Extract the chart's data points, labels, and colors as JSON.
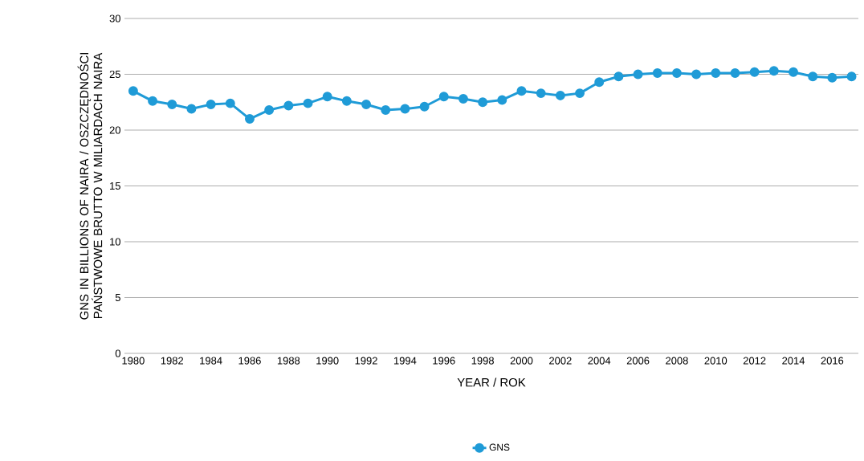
{
  "chart_data": {
    "type": "line",
    "xlabel": "YEAR / ROK",
    "ylabel": "GNS IN BILLIONS OF NAIRA / OSZCZĘDNOŚCI PAŃSTWOWE BRUTTO W MILIARDACH NAIRA",
    "x": [
      1980,
      1981,
      1982,
      1983,
      1984,
      1985,
      1986,
      1987,
      1988,
      1989,
      1990,
      1991,
      1992,
      1993,
      1994,
      1995,
      1996,
      1997,
      1998,
      1999,
      2000,
      2001,
      2002,
      2003,
      2004,
      2005,
      2006,
      2007,
      2008,
      2009,
      2010,
      2011,
      2012,
      2013,
      2014,
      2015,
      2016,
      2017
    ],
    "series": [
      {
        "name": "GNS",
        "color": "#1f9bd7",
        "values": [
          23.5,
          22.6,
          22.3,
          21.9,
          22.3,
          22.4,
          21.0,
          21.8,
          22.2,
          22.4,
          23.0,
          22.6,
          22.3,
          21.8,
          21.9,
          22.1,
          23.0,
          22.8,
          22.5,
          22.7,
          23.5,
          23.3,
          23.1,
          23.3,
          24.3,
          24.8,
          25.0,
          25.1,
          25.1,
          25.0,
          25.1,
          25.1,
          25.2,
          25.3,
          25.2,
          24.8,
          24.7,
          24.8
        ]
      }
    ],
    "xlim": [
      1979.55,
      2017.35
    ],
    "ylim": [
      0,
      30
    ],
    "xticks": [
      1980,
      1982,
      1984,
      1986,
      1988,
      1990,
      1992,
      1994,
      1996,
      1998,
      2000,
      2002,
      2004,
      2006,
      2008,
      2010,
      2012,
      2014,
      2016
    ],
    "yticks": [
      0,
      5,
      10,
      15,
      20,
      25,
      30
    ],
    "grid": "y",
    "legend": "bottom",
    "marker": "circle",
    "line_style": "solid"
  }
}
